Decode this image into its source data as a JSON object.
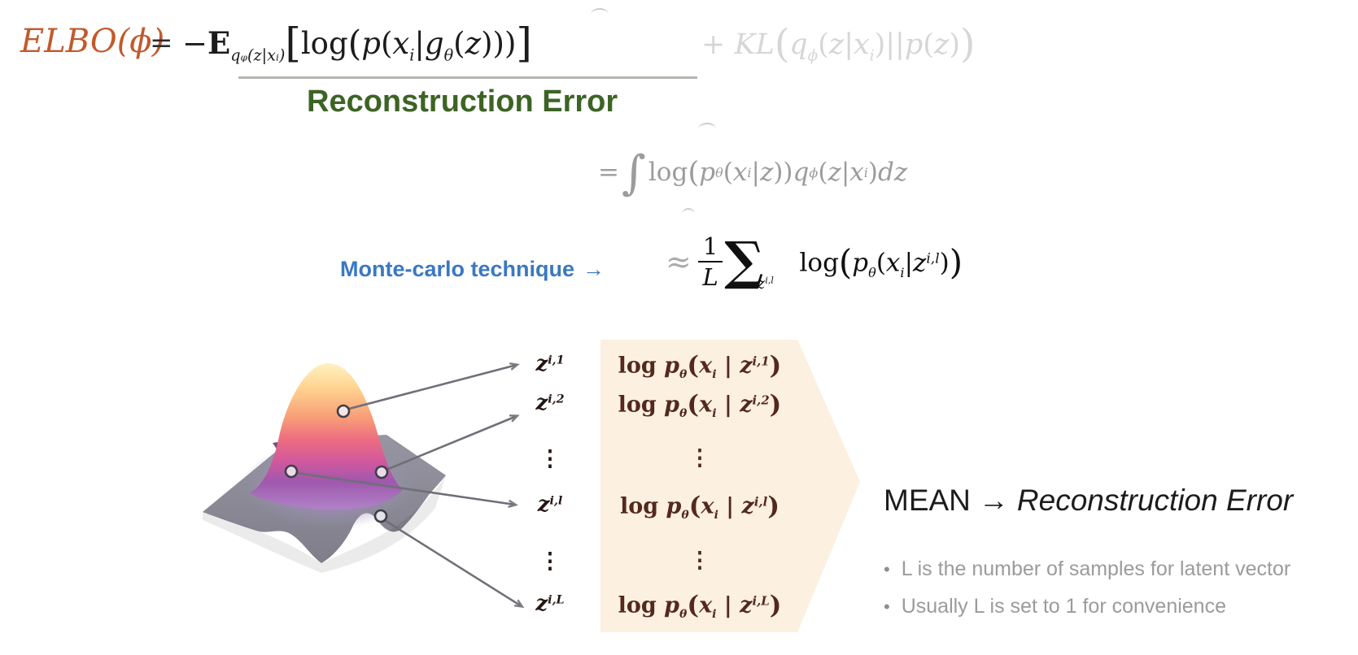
{
  "colors": {
    "elbo_orange": "#c2592b",
    "reconstruction_green": "#3d6424",
    "monte_carlo_blue": "#3a78c2",
    "panel_peach": "#fcf0e1",
    "formula_maroon": "#53291d",
    "faded_gray": "#9c9c9c",
    "kl_gray": "#d6d6d6"
  },
  "equation1": {
    "lhs": "ELBO(ϕ)",
    "equals": "=",
    "expectation_tokens": [
      [
        "n",
        "−"
      ],
      [
        "dbl",
        "E"
      ],
      [
        "sub",
        "qᵩ(z|xᵢ)"
      ],
      [
        "big",
        "["
      ],
      [
        "n",
        "log"
      ],
      [
        "bigp",
        "("
      ],
      [
        "i",
        "p"
      ],
      [
        "n",
        "("
      ],
      [
        "i",
        "x"
      ],
      [
        "sub",
        "i"
      ],
      [
        "n",
        "|"
      ],
      [
        "i",
        "g"
      ],
      [
        "sub",
        "θ"
      ],
      [
        "n",
        "("
      ],
      [
        "i",
        "z"
      ],
      [
        "n",
        ")))"
      ],
      [
        "big",
        "]"
      ]
    ],
    "kl_tokens": [
      [
        "n",
        "+ "
      ],
      [
        "i",
        "KL"
      ],
      [
        "big",
        "("
      ],
      [
        "i",
        "q"
      ],
      [
        "sub",
        "ϕ"
      ],
      [
        "n",
        "("
      ],
      [
        "i",
        "z"
      ],
      [
        "n",
        "|"
      ],
      [
        "i",
        "x"
      ],
      [
        "sub",
        "i"
      ],
      [
        "n",
        ")"
      ],
      [
        "n",
        "||"
      ],
      [
        "i",
        "p"
      ],
      [
        "n",
        "("
      ],
      [
        "i",
        "z"
      ],
      [
        "n",
        ")"
      ],
      [
        "big",
        ")"
      ]
    ],
    "underline_label": "Reconstruction Error"
  },
  "equation2": {
    "tokens": [
      [
        "n",
        "= "
      ],
      [
        "int",
        "∫"
      ],
      [
        "n",
        "log"
      ],
      [
        "bigp",
        "("
      ],
      [
        "i",
        "p"
      ],
      [
        "sub",
        "θ"
      ],
      [
        "n",
        "("
      ],
      [
        "i",
        "x"
      ],
      [
        "sub",
        "i"
      ],
      [
        "n",
        "|"
      ],
      [
        "i",
        "z"
      ],
      [
        "n",
        "))"
      ],
      [
        "i",
        "q"
      ],
      [
        "sub",
        "ϕ"
      ],
      [
        "n",
        "("
      ],
      [
        "i",
        "z"
      ],
      [
        "n",
        "|"
      ],
      [
        "i",
        "x"
      ],
      [
        "sub",
        "i"
      ],
      [
        "n",
        ")"
      ],
      [
        "i",
        "dz"
      ]
    ]
  },
  "equation3": {
    "label": "Monte-carlo technique",
    "label_arrow": "→",
    "approx": "≈",
    "frac_num": "1",
    "frac_den": "L",
    "sum_glyph": "∑",
    "sum_sub_tokens": [
      [
        "i",
        "z"
      ],
      [
        "sup",
        "i,l"
      ]
    ],
    "body_tokens": [
      [
        "n",
        "log"
      ],
      [
        "big",
        "("
      ],
      [
        "i",
        "p"
      ],
      [
        "sub",
        "θ"
      ],
      [
        "n",
        "("
      ],
      [
        "i",
        "x"
      ],
      [
        "sub",
        "i"
      ],
      [
        "n",
        "|"
      ],
      [
        "i",
        "z"
      ],
      [
        "sup",
        "i,l"
      ],
      [
        "n",
        ")"
      ],
      [
        "big",
        ")"
      ]
    ]
  },
  "samples": {
    "rows": [
      {
        "z": [
          [
            "i",
            "z"
          ],
          [
            "sup",
            "i,1"
          ]
        ],
        "log": [
          [
            "n",
            "log "
          ],
          [
            "i",
            "p"
          ],
          [
            "sub",
            "θ"
          ],
          [
            "bigp",
            "("
          ],
          [
            "i",
            "x"
          ],
          [
            "sub",
            "i"
          ],
          [
            "n",
            " | "
          ],
          [
            "i",
            "z"
          ],
          [
            "sup",
            "i,1"
          ],
          [
            "bigp",
            ")"
          ]
        ]
      },
      {
        "z": [
          [
            "i",
            "z"
          ],
          [
            "sup",
            "i,2"
          ]
        ],
        "log": [
          [
            "n",
            "log "
          ],
          [
            "i",
            "p"
          ],
          [
            "sub",
            "θ"
          ],
          [
            "bigp",
            "("
          ],
          [
            "i",
            "x"
          ],
          [
            "sub",
            "i"
          ],
          [
            "n",
            " | "
          ],
          [
            "i",
            "z"
          ],
          [
            "sup",
            "i,2"
          ],
          [
            "bigp",
            ")"
          ]
        ]
      },
      {
        "z": [
          [
            "i",
            "z"
          ],
          [
            "sup",
            "i,l"
          ]
        ],
        "log": [
          [
            "n",
            "log "
          ],
          [
            "i",
            "p"
          ],
          [
            "sub",
            "θ"
          ],
          [
            "bigp",
            "("
          ],
          [
            "i",
            "x"
          ],
          [
            "sub",
            "i"
          ],
          [
            "n",
            " | "
          ],
          [
            "i",
            "z"
          ],
          [
            "sup",
            "i,l"
          ],
          [
            "bigp",
            ")"
          ]
        ]
      },
      {
        "z": [
          [
            "i",
            "z"
          ],
          [
            "sup",
            "i,L"
          ]
        ],
        "log": [
          [
            "n",
            "log "
          ],
          [
            "i",
            "p"
          ],
          [
            "sub",
            "θ"
          ],
          [
            "bigp",
            "("
          ],
          [
            "i",
            "x"
          ],
          [
            "sub",
            "i"
          ],
          [
            "n",
            " | "
          ],
          [
            "i",
            "z"
          ],
          [
            "sup",
            "i,L"
          ],
          [
            "bigp",
            ")"
          ]
        ]
      }
    ],
    "dots": "⋮"
  },
  "mean_line": {
    "prefix": "MEAN",
    "arrow": "→",
    "italic_label": "Reconstruction Error"
  },
  "notes": {
    "bullet": "•",
    "items": [
      "L is the number of samples for latent vector",
      "Usually L is set to 1 for convenience"
    ]
  }
}
